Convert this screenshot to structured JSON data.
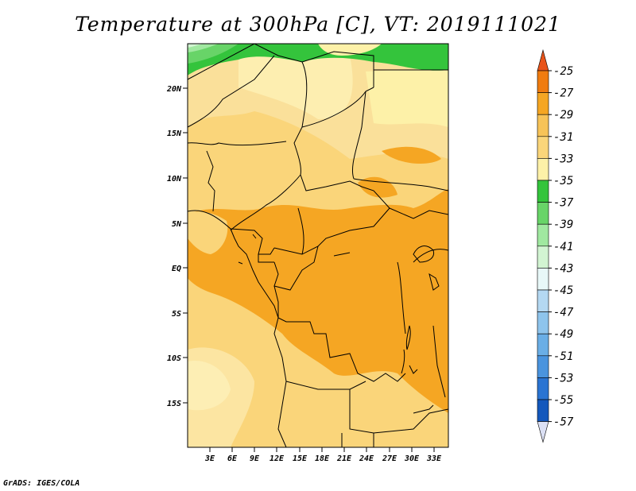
{
  "title": "Temperature at 300hPa [C], VT: 2019111021",
  "footer": "GrADS: IGES/COLA",
  "map": {
    "lat_labels": [
      "20N",
      "15N",
      "10N",
      "5N",
      "EQ",
      "5S",
      "10S",
      "15S"
    ],
    "lon_labels": [
      "3E",
      "6E",
      "9E",
      "12E",
      "15E",
      "18E",
      "21E",
      "24E",
      "27E",
      "30E",
      "33E"
    ]
  },
  "colorbar": {
    "labels": [
      "-25",
      "-27",
      "-29",
      "-31",
      "-33",
      "-35",
      "-37",
      "-39",
      "-41",
      "-43",
      "-45",
      "-47",
      "-49",
      "-51",
      "-53",
      "-55",
      "-57"
    ],
    "colors": [
      "#e8541a",
      "#f07c10",
      "#f5a623",
      "#f7c358",
      "#fad57a",
      "#fdf1a8",
      "#34c43c",
      "#68d468",
      "#a0e8a0",
      "#d2f4d2",
      "#e8f8f8",
      "#b4d8f2",
      "#8ec4ec",
      "#6aaee6",
      "#4a94de",
      "#2a74d2",
      "#1458bc",
      "#0a2d86"
    ],
    "top_arrow_color": "#e8541a",
    "bottom_arrow_color": "#dbe0f4"
  }
}
